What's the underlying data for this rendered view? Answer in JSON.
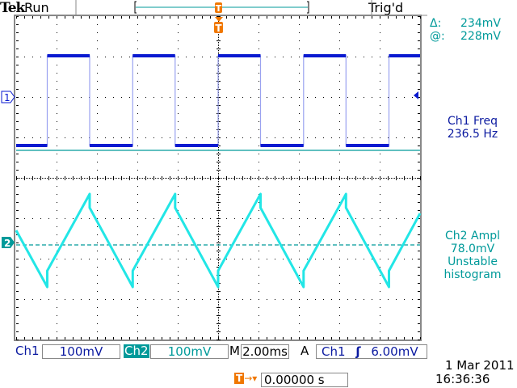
{
  "header": {
    "brand": "Tek",
    "state": "Run",
    "trigger_status": "Trig'd"
  },
  "cursor_readout": {
    "delta_label": "Δ:",
    "delta_value": "234mV",
    "at_label": "@:",
    "at_value": "228mV"
  },
  "measurements": [
    {
      "line1": "Ch1 Freq",
      "line2": "236.5 Hz"
    },
    {
      "line1": "Ch2 Ampl",
      "line2": "78.0mV",
      "line3": "Unstable",
      "line4": "histogram"
    }
  ],
  "bottom": {
    "ch1_label": "Ch1",
    "ch1_scale": "100mV",
    "ch2_label": "Ch2",
    "ch2_scale": "100mV",
    "timebase_label": "M",
    "timebase": "2.00ms",
    "trigger_mode": "A",
    "trigger_source": "Ch1",
    "trigger_slope_icon": "rising-edge-icon",
    "trigger_level": "6.00mV",
    "trigger_position_icon": "trigger-position-icon",
    "trigger_position": "0.00000 s",
    "date": "1 Mar  2011",
    "time": "16:36:36"
  },
  "markers": {
    "ch1": "1",
    "ch2": "2",
    "trigger": "T"
  },
  "colors": {
    "ch1": "#0a1ad0",
    "ch2": "#22e6e6",
    "cursor": "#009a9a",
    "trigger": "#f07800",
    "grid": "#000000"
  },
  "chart_data": {
    "type": "line",
    "xlabel": "",
    "ylabel": "",
    "x_unit": "ms",
    "y_unit": "mV",
    "xlim": [
      -10,
      10
    ],
    "ylim_per_channel_mV": [
      -400,
      400
    ],
    "grid": true,
    "divisions": {
      "x": 10,
      "y": 8
    },
    "series": [
      {
        "name": "Ch1",
        "color": "#0a1ad0",
        "offset_div": 2,
        "points": [
          [
            -10,
            -120
          ],
          [
            -8.46,
            -120
          ],
          [
            -8.46,
            102
          ],
          [
            -6.36,
            102
          ],
          [
            -6.36,
            -120
          ],
          [
            -4.23,
            -120
          ],
          [
            -4.23,
            102
          ],
          [
            -2.13,
            102
          ],
          [
            -2.13,
            -120
          ],
          [
            0,
            -120
          ],
          [
            0,
            102
          ],
          [
            2.1,
            102
          ],
          [
            2.1,
            -120
          ],
          [
            4.23,
            -120
          ],
          [
            4.23,
            102
          ],
          [
            6.33,
            102
          ],
          [
            6.33,
            -120
          ],
          [
            8.46,
            -120
          ],
          [
            8.46,
            102
          ],
          [
            10,
            102
          ]
        ]
      },
      {
        "name": "Ch2",
        "color": "#22e6e6",
        "offset_div": -1.6,
        "points": [
          [
            -10,
            30
          ],
          [
            -8.46,
            -110
          ],
          [
            -8.46,
            -70
          ],
          [
            -6.36,
            120
          ],
          [
            -6.36,
            86
          ],
          [
            -4.23,
            -110
          ],
          [
            -4.23,
            -70
          ],
          [
            -2.13,
            120
          ],
          [
            -2.13,
            86
          ],
          [
            0,
            -110
          ],
          [
            0,
            -70
          ],
          [
            2.1,
            120
          ],
          [
            2.1,
            86
          ],
          [
            4.23,
            -110
          ],
          [
            4.23,
            -70
          ],
          [
            6.33,
            120
          ],
          [
            6.33,
            86
          ],
          [
            8.46,
            -110
          ],
          [
            8.46,
            -70
          ],
          [
            10,
            72
          ]
        ]
      }
    ],
    "cursors": {
      "channel": "Ch2",
      "levels_mV": [
        228,
        -6
      ]
    }
  }
}
